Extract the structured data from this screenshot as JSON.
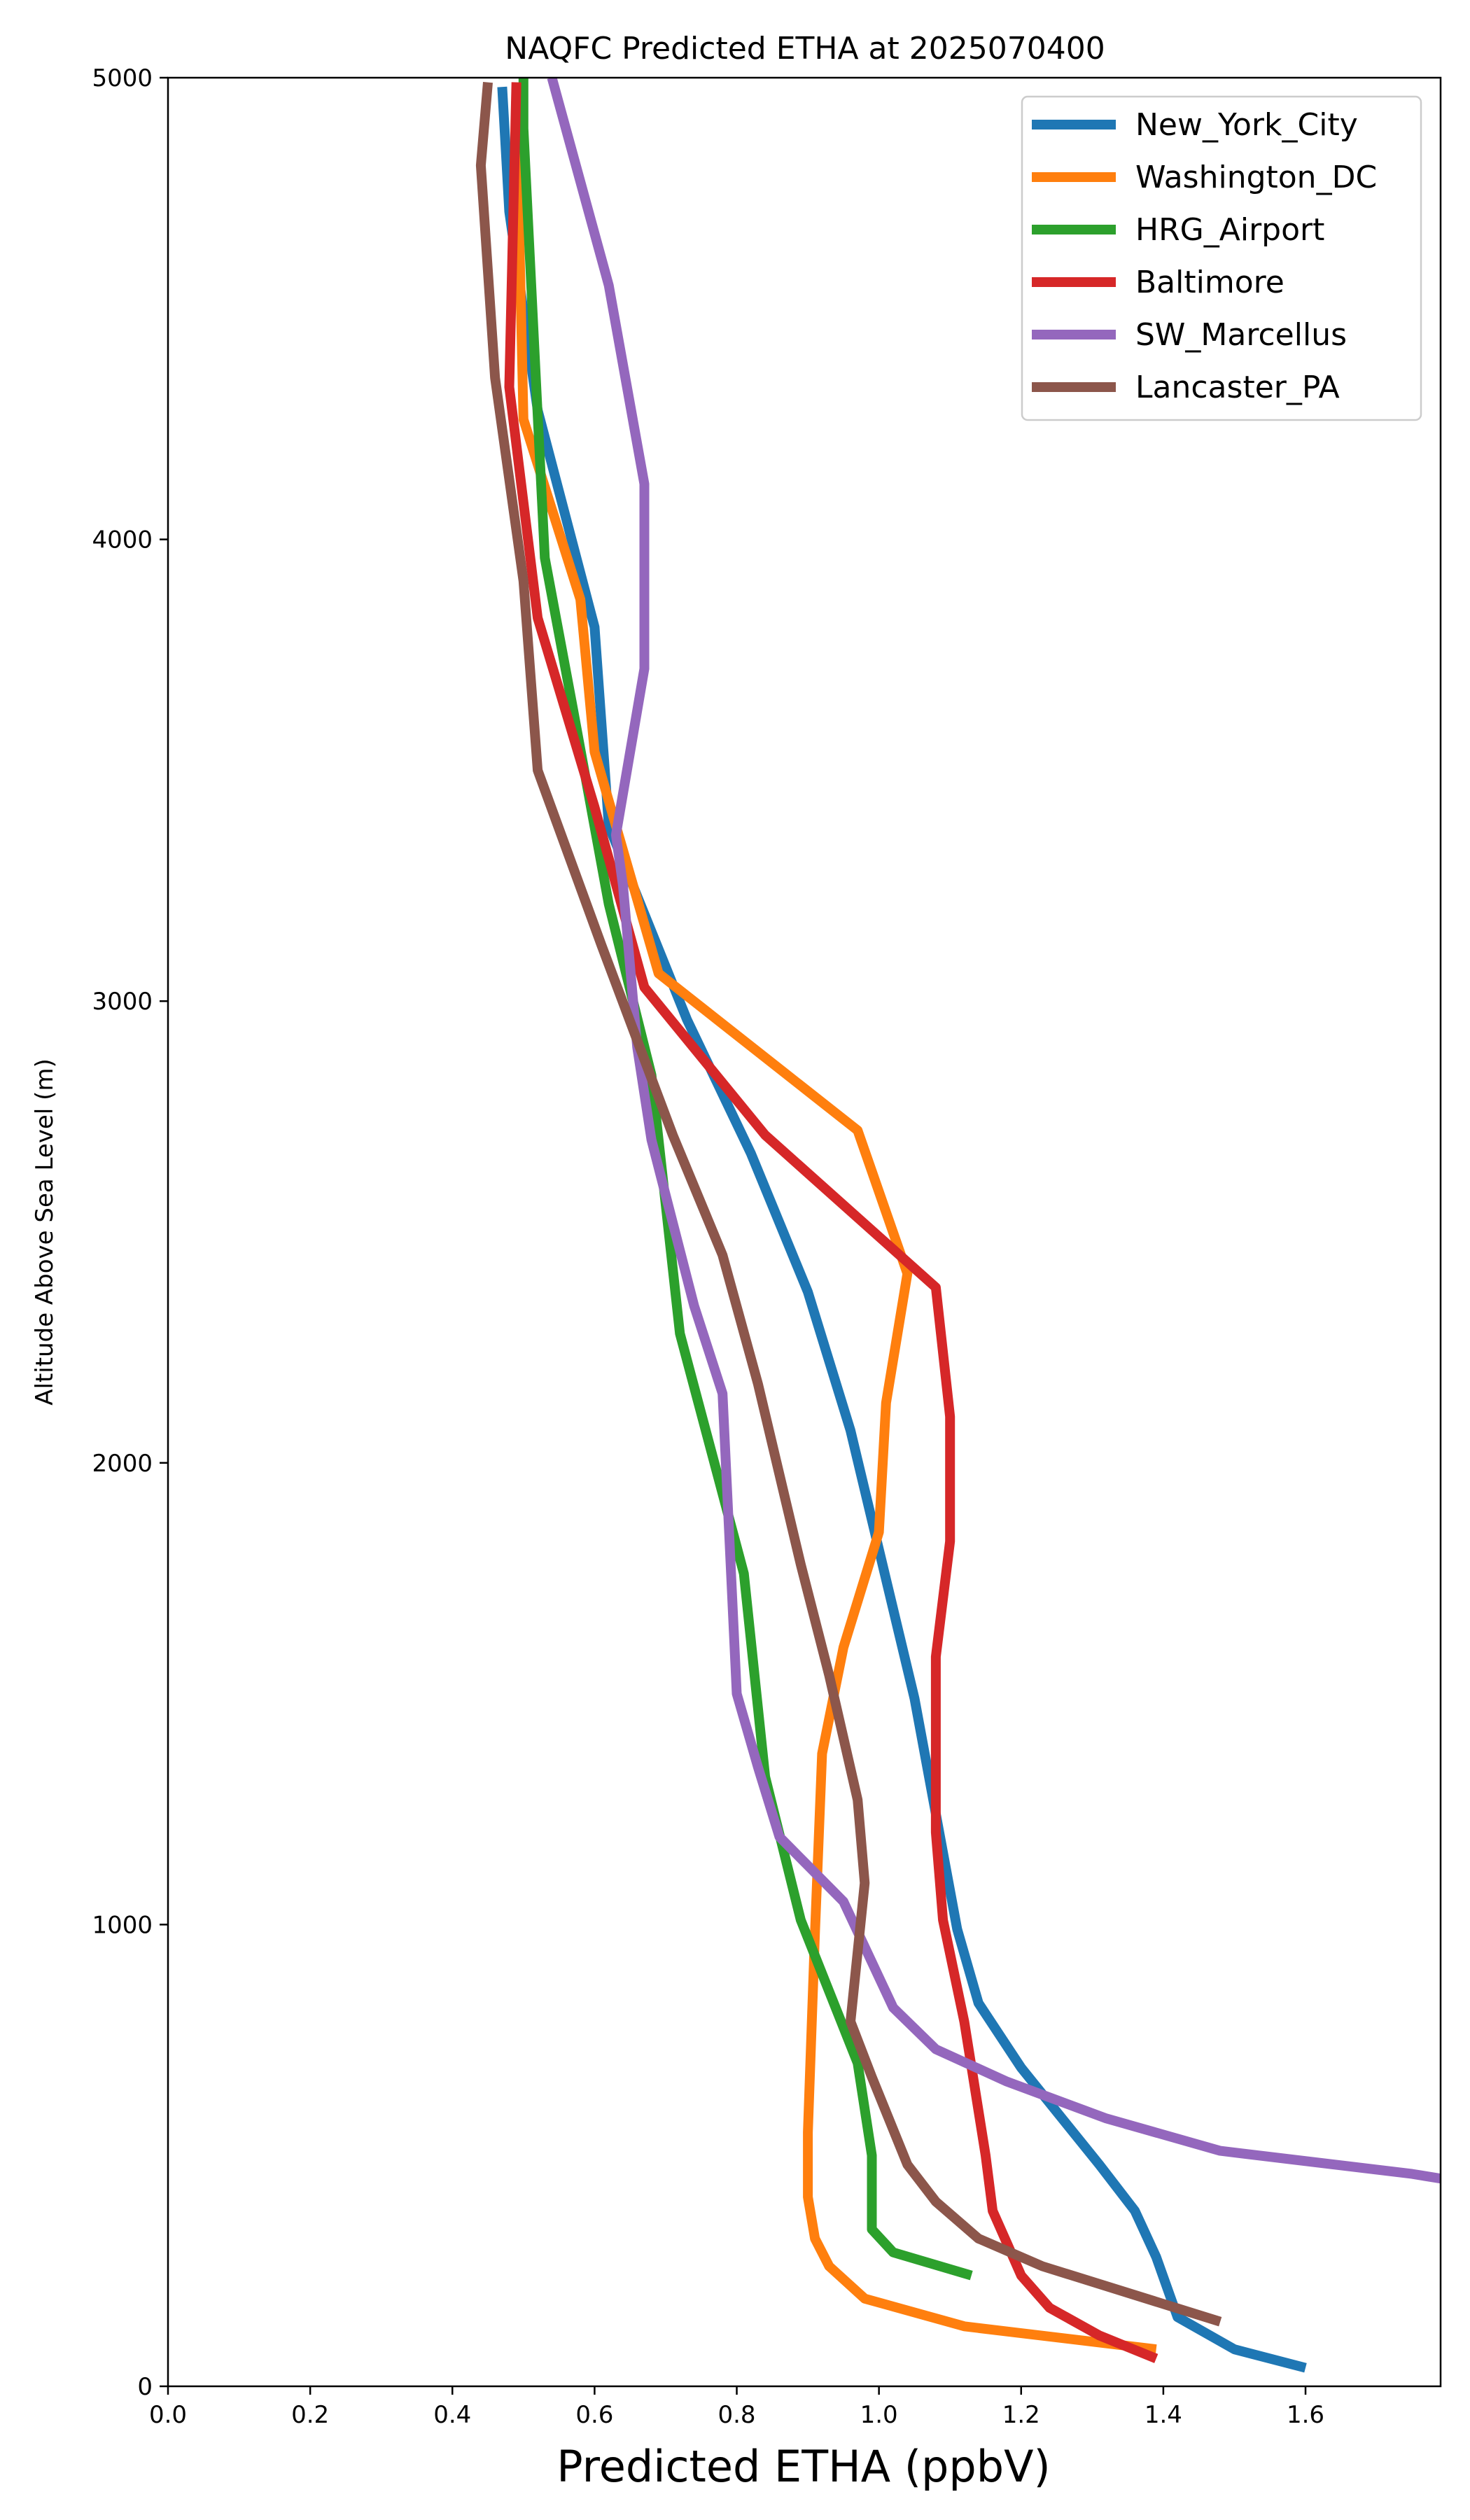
{
  "chart_data": {
    "type": "line",
    "title": "NAQFC Predicted ETHA at 2025070400",
    "xlabel": "Predicted ETHA (ppbV)",
    "ylabel": "Altitude Above Sea Level (m)",
    "xlim": [
      0.0,
      1.79
    ],
    "ylim": [
      0,
      5000
    ],
    "x_ticks": [
      "0.0",
      "0.2",
      "0.4",
      "0.6",
      "0.8",
      "1.0",
      "1.2",
      "1.4",
      "1.6"
    ],
    "y_ticks": [
      "0",
      "1000",
      "2000",
      "3000",
      "4000",
      "5000"
    ],
    "grid": false,
    "legend_position": "top-right",
    "series": [
      {
        "name": "New_York_City",
        "color": "#1f77b4",
        "points": [
          [
            1.6,
            40
          ],
          [
            1.5,
            80
          ],
          [
            1.42,
            150
          ],
          [
            1.39,
            280
          ],
          [
            1.36,
            380
          ],
          [
            1.31,
            480
          ],
          [
            1.2,
            690
          ],
          [
            1.14,
            830
          ],
          [
            1.11,
            990
          ],
          [
            1.05,
            1490
          ],
          [
            0.96,
            2070
          ],
          [
            0.9,
            2370
          ],
          [
            0.82,
            2670
          ],
          [
            0.73,
            2960
          ],
          [
            0.62,
            3380
          ],
          [
            0.6,
            3810
          ],
          [
            0.52,
            4280
          ],
          [
            0.48,
            4710
          ],
          [
            0.47,
            4980
          ]
        ]
      },
      {
        "name": "Washington_DC",
        "color": "#ff7f0e",
        "points": [
          [
            1.39,
            80
          ],
          [
            1.12,
            130
          ],
          [
            0.98,
            190
          ],
          [
            0.93,
            260
          ],
          [
            0.91,
            320
          ],
          [
            0.9,
            410
          ],
          [
            0.9,
            550
          ],
          [
            0.91,
            980
          ],
          [
            0.92,
            1370
          ],
          [
            0.95,
            1600
          ],
          [
            1.0,
            1850
          ],
          [
            1.01,
            2130
          ],
          [
            1.04,
            2410
          ],
          [
            0.97,
            2720
          ],
          [
            0.69,
            3060
          ],
          [
            0.6,
            3540
          ],
          [
            0.58,
            3870
          ],
          [
            0.5,
            4260
          ],
          [
            0.49,
            4940
          ]
        ]
      },
      {
        "name": "HRG_Airport",
        "color": "#2ca02c",
        "points": [
          [
            1.13,
            240
          ],
          [
            1.02,
            290
          ],
          [
            0.99,
            340
          ],
          [
            0.99,
            500
          ],
          [
            0.97,
            700
          ],
          [
            0.89,
            1010
          ],
          [
            0.84,
            1320
          ],
          [
            0.81,
            1760
          ],
          [
            0.72,
            2280
          ],
          [
            0.68,
            2840
          ],
          [
            0.62,
            3210
          ],
          [
            0.57,
            3630
          ],
          [
            0.53,
            3960
          ],
          [
            0.52,
            4270
          ],
          [
            0.5,
            4890
          ],
          [
            0.5,
            5000
          ]
        ]
      },
      {
        "name": "Baltimore",
        "color": "#d62728",
        "points": [
          [
            1.39,
            60
          ],
          [
            1.31,
            110
          ],
          [
            1.24,
            170
          ],
          [
            1.2,
            240
          ],
          [
            1.18,
            310
          ],
          [
            1.16,
            380
          ],
          [
            1.15,
            500
          ],
          [
            1.12,
            790
          ],
          [
            1.09,
            1010
          ],
          [
            1.08,
            1200
          ],
          [
            1.08,
            1580
          ],
          [
            1.1,
            1830
          ],
          [
            1.1,
            2100
          ],
          [
            1.08,
            2380
          ],
          [
            0.84,
            2710
          ],
          [
            0.67,
            3030
          ],
          [
            0.6,
            3420
          ],
          [
            0.52,
            3830
          ],
          [
            0.48,
            4330
          ],
          [
            0.49,
            4990
          ]
        ]
      },
      {
        "name": "SW_Marcellus",
        "color": "#9467bd",
        "points": [
          [
            1.79,
            450
          ],
          [
            1.75,
            460
          ],
          [
            1.48,
            510
          ],
          [
            1.32,
            580
          ],
          [
            1.18,
            660
          ],
          [
            1.08,
            730
          ],
          [
            1.02,
            820
          ],
          [
            0.95,
            1050
          ],
          [
            0.86,
            1190
          ],
          [
            0.83,
            1340
          ],
          [
            0.8,
            1500
          ],
          [
            0.78,
            2150
          ],
          [
            0.74,
            2340
          ],
          [
            0.68,
            2700
          ],
          [
            0.66,
            2900
          ],
          [
            0.64,
            3250
          ],
          [
            0.63,
            3360
          ],
          [
            0.67,
            3720
          ],
          [
            0.67,
            4120
          ],
          [
            0.62,
            4550
          ],
          [
            0.54,
            5000
          ]
        ]
      },
      {
        "name": "Lancaster_PA",
        "color": "#8c564b",
        "points": [
          [
            1.48,
            140
          ],
          [
            1.23,
            260
          ],
          [
            1.14,
            320
          ],
          [
            1.08,
            400
          ],
          [
            1.04,
            480
          ],
          [
            0.99,
            670
          ],
          [
            0.96,
            790
          ],
          [
            0.98,
            1090
          ],
          [
            0.97,
            1270
          ],
          [
            0.93,
            1540
          ],
          [
            0.89,
            1780
          ],
          [
            0.83,
            2170
          ],
          [
            0.78,
            2450
          ],
          [
            0.71,
            2710
          ],
          [
            0.61,
            3120
          ],
          [
            0.52,
            3500
          ],
          [
            0.5,
            3910
          ],
          [
            0.46,
            4350
          ],
          [
            0.44,
            4810
          ],
          [
            0.45,
            4990
          ]
        ]
      }
    ]
  }
}
